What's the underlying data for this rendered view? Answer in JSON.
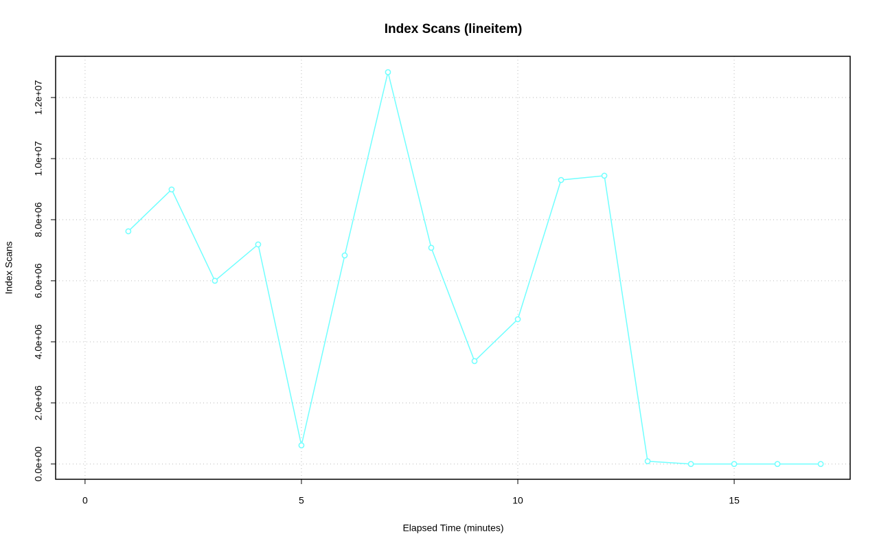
{
  "chart_data": {
    "type": "line",
    "title": "Index Scans (lineitem)",
    "x_label": "Elapsed Time (minutes)",
    "y_label": "Index Scans",
    "x": [
      1,
      2,
      3,
      4,
      5,
      6,
      7,
      8,
      9,
      10,
      11,
      12,
      13,
      14,
      15,
      16,
      17
    ],
    "series": [
      {
        "name": "Index Scans",
        "color": "#70ffff",
        "values": [
          7620000,
          8990000,
          6000000,
          7190000,
          610000,
          6830000,
          12830000,
          7080000,
          3370000,
          4740000,
          9300000,
          9440000,
          90000,
          0,
          0,
          0,
          0
        ]
      }
    ],
    "xlim": [
      -0.68,
      17.68
    ],
    "xticks": [
      0,
      5,
      10,
      15
    ],
    "ylim": [
      -500000,
      13350000
    ],
    "yticks": [
      {
        "value": 0,
        "label": "0.0e+00"
      },
      {
        "value": 2000000,
        "label": "2.0e+06"
      },
      {
        "value": 4000000,
        "label": "4.0e+06"
      },
      {
        "value": 6000000,
        "label": "6.0e+06"
      },
      {
        "value": 8000000,
        "label": "8.0e+06"
      },
      {
        "value": 10000000,
        "label": "1.0e+07"
      },
      {
        "value": 12000000,
        "label": "1.2e+07"
      }
    ],
    "grid": true
  }
}
